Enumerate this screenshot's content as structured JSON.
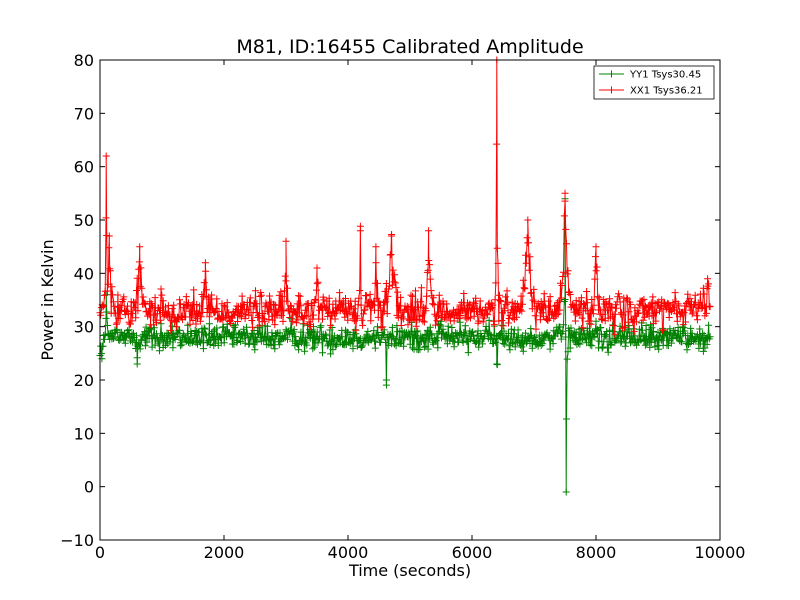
{
  "chart_data": {
    "type": "line",
    "title": "M81, ID:16455 Calibrated Amplitude",
    "xlabel": "Time (seconds)",
    "ylabel": "Power in Kelvin",
    "xlim": [
      0,
      10000
    ],
    "ylim": [
      -10,
      80
    ],
    "xticks": [
      0,
      2000,
      4000,
      6000,
      8000,
      10000
    ],
    "yticks": [
      -10,
      0,
      10,
      20,
      30,
      40,
      50,
      60,
      70,
      80
    ],
    "grid": false,
    "legend_position": "top-right",
    "marker": "+",
    "series": [
      {
        "name": "YY1 Tsys30.45",
        "color": "#008000",
        "baseline": 28,
        "noise": 1.5,
        "x_start": 0,
        "x_end": 9850,
        "events": [
          {
            "x": 30,
            "y": 24,
            "width": 80
          },
          {
            "x": 100,
            "y": 36,
            "width": 40
          },
          {
            "x": 600,
            "y": 23,
            "width": 40
          },
          {
            "x": 1300,
            "y": 27,
            "width": 30
          },
          {
            "x": 4620,
            "y": 20,
            "width": 30
          },
          {
            "x": 5500,
            "y": 31,
            "width": 60
          },
          {
            "x": 6400,
            "y": 23,
            "width": 40
          },
          {
            "x": 7500,
            "y": 54,
            "width": 30
          },
          {
            "x": 7520,
            "y": -1,
            "width": 30
          },
          {
            "x": 8000,
            "y": 31,
            "width": 50
          }
        ]
      },
      {
        "name": "XX1 Tsys36.21",
        "color": "#ff0000",
        "baseline": 33,
        "noise": 2,
        "x_start": 0,
        "x_end": 9850,
        "events": [
          {
            "x": 100,
            "y": 62,
            "width": 30
          },
          {
            "x": 150,
            "y": 47,
            "width": 80
          },
          {
            "x": 640,
            "y": 45,
            "width": 100
          },
          {
            "x": 1700,
            "y": 42,
            "width": 80
          },
          {
            "x": 3000,
            "y": 46,
            "width": 40
          },
          {
            "x": 3500,
            "y": 41,
            "width": 60
          },
          {
            "x": 4200,
            "y": 48,
            "width": 20
          },
          {
            "x": 4450,
            "y": 45,
            "width": 40
          },
          {
            "x": 4700,
            "y": 47,
            "width": 150
          },
          {
            "x": 5300,
            "y": 48,
            "width": 70
          },
          {
            "x": 6400,
            "y": 80,
            "width": 40
          },
          {
            "x": 6900,
            "y": 50,
            "width": 140
          },
          {
            "x": 7500,
            "y": 55,
            "width": 120
          },
          {
            "x": 8000,
            "y": 45,
            "width": 60
          },
          {
            "x": 9800,
            "y": 39,
            "width": 60
          }
        ]
      }
    ]
  }
}
